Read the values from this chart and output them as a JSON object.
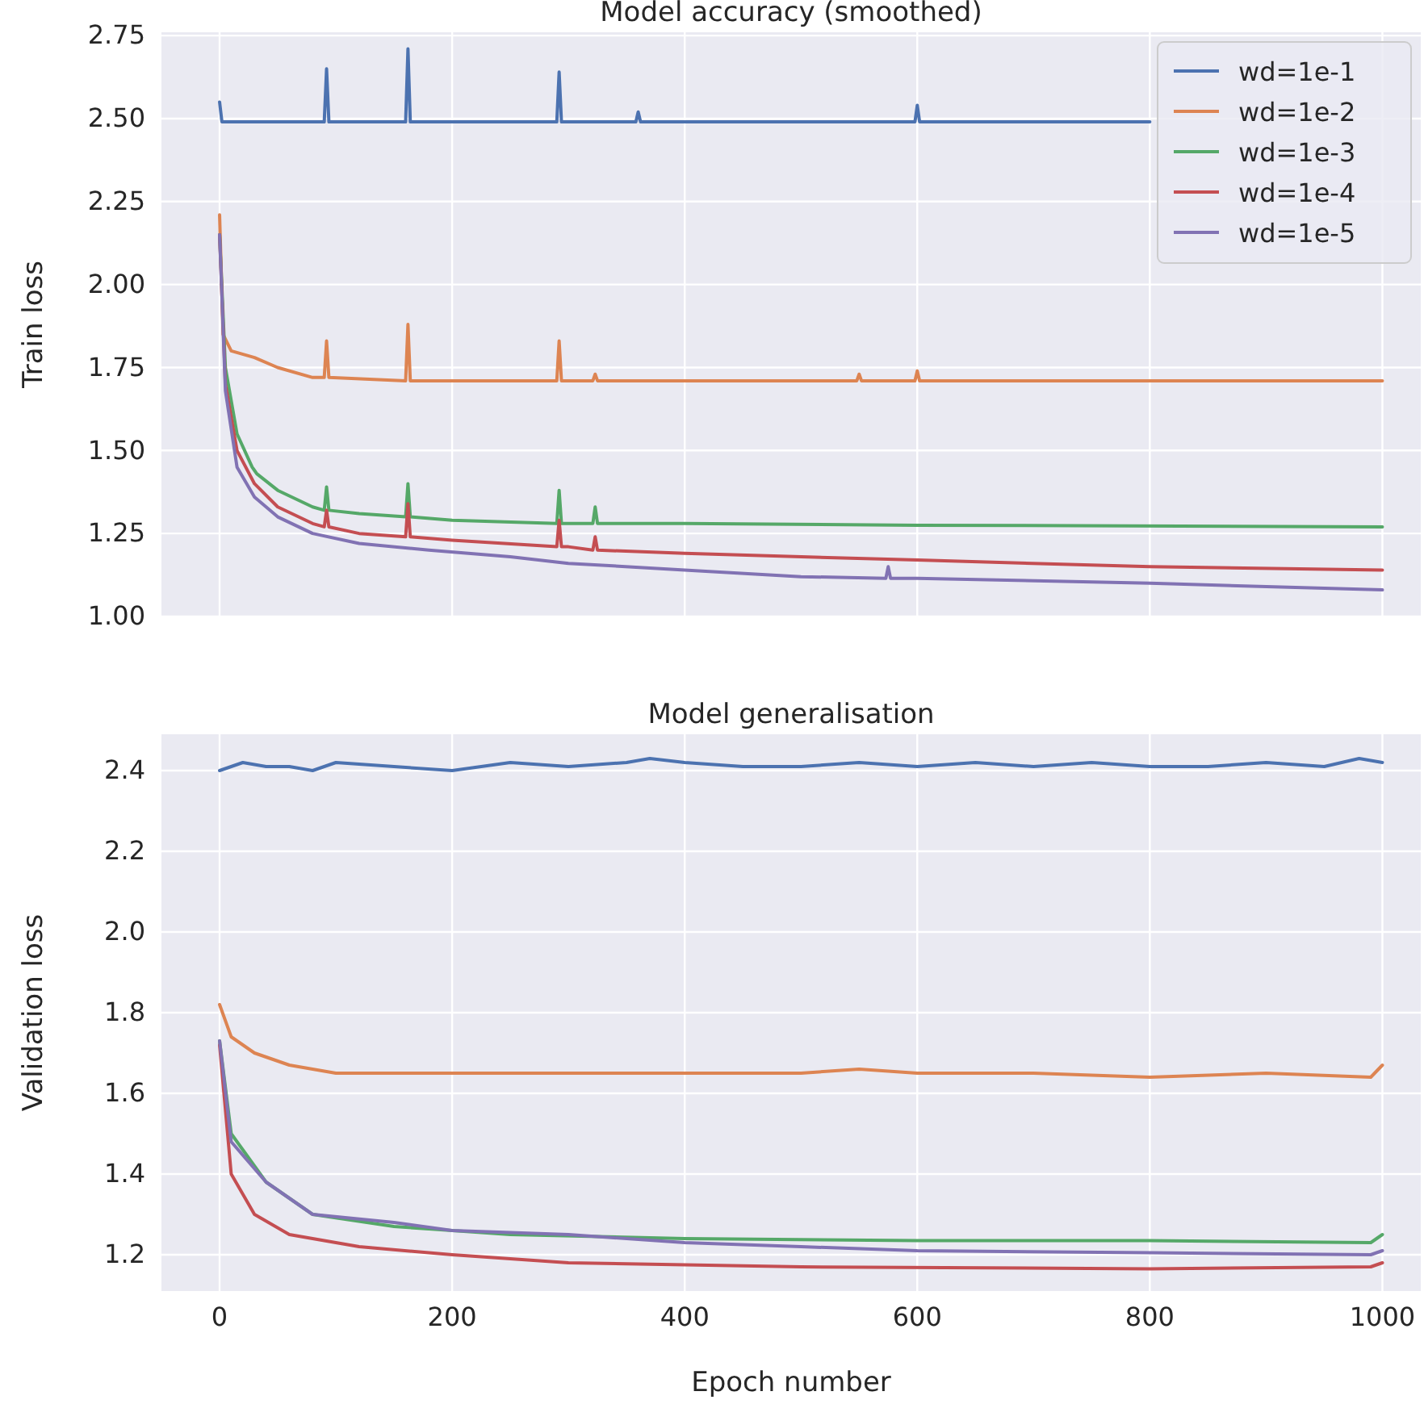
{
  "chart_data": [
    {
      "type": "line",
      "title": "Model accuracy (smoothed)",
      "ylabel": "Train loss",
      "xlim": [
        -50,
        1033
      ],
      "ylim": [
        1.0,
        2.76
      ],
      "xticks": [
        0,
        200,
        400,
        600,
        800,
        1000
      ],
      "yticks": [
        {
          "value": 1,
          "label": "1.00"
        },
        {
          "value": 1.25,
          "label": "1.25"
        },
        {
          "value": 1.5,
          "label": "1.50"
        },
        {
          "value": 1.75,
          "label": "1.75"
        },
        {
          "value": 2,
          "label": "2.00"
        },
        {
          "value": 2.25,
          "label": "2.25"
        },
        {
          "value": 2.5,
          "label": "2.50"
        },
        {
          "value": 2.75,
          "label": "2.75"
        }
      ],
      "tick_labels": "y",
      "grid": true,
      "legend": "top right",
      "line_style": "solid",
      "series": [
        {
          "name": "wd=1e-1",
          "color": "#4c72b0",
          "x": [
            0,
            2,
            4,
            90,
            92,
            94,
            160,
            162,
            164,
            290,
            292,
            294,
            358,
            360,
            362,
            598,
            600,
            602,
            800
          ],
          "values": [
            2.55,
            2.49,
            2.49,
            2.49,
            2.65,
            2.49,
            2.49,
            2.71,
            2.49,
            2.49,
            2.64,
            2.49,
            2.49,
            2.52,
            2.49,
            2.49,
            2.54,
            2.49,
            2.49
          ]
        },
        {
          "name": "wd=1e-2",
          "color": "#dd8452",
          "x": [
            0,
            3,
            10,
            30,
            50,
            80,
            90,
            92,
            94,
            160,
            162,
            164,
            290,
            292,
            294,
            321,
            323,
            325,
            548,
            550,
            552,
            598,
            600,
            602,
            800,
            1000
          ],
          "values": [
            2.21,
            1.85,
            1.8,
            1.78,
            1.75,
            1.72,
            1.72,
            1.83,
            1.72,
            1.71,
            1.88,
            1.71,
            1.71,
            1.83,
            1.71,
            1.71,
            1.73,
            1.71,
            1.71,
            1.73,
            1.71,
            1.71,
            1.74,
            1.71,
            1.71,
            1.71
          ]
        },
        {
          "name": "wd=1e-3",
          "color": "#55a868",
          "x": [
            0,
            5,
            15,
            28,
            30,
            32,
            50,
            80,
            90,
            92,
            94,
            120,
            160,
            162,
            164,
            200,
            290,
            292,
            294,
            321,
            323,
            325,
            400,
            600,
            1000
          ],
          "values": [
            2.15,
            1.75,
            1.55,
            1.45,
            1.44,
            1.43,
            1.38,
            1.33,
            1.32,
            1.39,
            1.32,
            1.31,
            1.3,
            1.4,
            1.3,
            1.29,
            1.28,
            1.38,
            1.28,
            1.28,
            1.33,
            1.28,
            1.28,
            1.275,
            1.27
          ]
        },
        {
          "name": "wd=1e-4",
          "color": "#c44e52",
          "x": [
            0,
            5,
            15,
            30,
            50,
            80,
            90,
            92,
            94,
            120,
            160,
            162,
            164,
            200,
            290,
            292,
            294,
            300,
            321,
            323,
            325,
            400,
            600,
            800,
            1000
          ],
          "values": [
            2.15,
            1.7,
            1.5,
            1.4,
            1.33,
            1.28,
            1.27,
            1.32,
            1.27,
            1.25,
            1.24,
            1.34,
            1.24,
            1.23,
            1.21,
            1.29,
            1.21,
            1.21,
            1.2,
            1.24,
            1.2,
            1.19,
            1.17,
            1.15,
            1.14
          ]
        },
        {
          "name": "wd=1e-5",
          "color": "#8172b3",
          "x": [
            0,
            5,
            15,
            30,
            50,
            80,
            120,
            180,
            250,
            300,
            400,
            500,
            573,
            575,
            577,
            600,
            800,
            1000
          ],
          "values": [
            2.15,
            1.68,
            1.45,
            1.36,
            1.3,
            1.25,
            1.22,
            1.2,
            1.18,
            1.16,
            1.14,
            1.12,
            1.115,
            1.15,
            1.115,
            1.115,
            1.1,
            1.08
          ]
        }
      ]
    },
    {
      "type": "line",
      "title": "Model generalisation",
      "xlabel": "Epoch number",
      "ylabel": "Validation loss",
      "xlim": [
        -50,
        1033
      ],
      "ylim": [
        1.11,
        2.49
      ],
      "xticks": [
        0,
        200,
        400,
        600,
        800,
        1000
      ],
      "yticks": [
        1.2,
        1.4,
        1.6,
        1.8,
        {
          "value": 2,
          "label": "2.0"
        },
        2.2,
        2.4
      ],
      "grid": true,
      "line_style": "solid",
      "series": [
        {
          "color": "#4c72b0",
          "x": [
            0,
            20,
            40,
            60,
            80,
            100,
            150,
            200,
            250,
            300,
            350,
            370,
            400,
            450,
            500,
            550,
            600,
            650,
            700,
            750,
            800,
            850,
            900,
            950,
            980,
            1000
          ],
          "values": [
            2.4,
            2.42,
            2.41,
            2.41,
            2.4,
            2.42,
            2.41,
            2.4,
            2.42,
            2.41,
            2.42,
            2.43,
            2.42,
            2.41,
            2.41,
            2.42,
            2.41,
            2.42,
            2.41,
            2.42,
            2.41,
            2.41,
            2.42,
            2.41,
            2.43,
            2.42
          ]
        },
        {
          "color": "#dd8452",
          "x": [
            0,
            10,
            30,
            60,
            100,
            200,
            300,
            400,
            500,
            550,
            600,
            700,
            800,
            900,
            990,
            1000
          ],
          "values": [
            1.82,
            1.74,
            1.7,
            1.67,
            1.65,
            1.65,
            1.65,
            1.65,
            1.65,
            1.66,
            1.65,
            1.65,
            1.64,
            1.65,
            1.64,
            1.67
          ]
        },
        {
          "color": "#55a868",
          "x": [
            0,
            10,
            40,
            80,
            150,
            250,
            400,
            600,
            800,
            990,
            1000
          ],
          "values": [
            1.73,
            1.5,
            1.38,
            1.3,
            1.27,
            1.25,
            1.24,
            1.235,
            1.235,
            1.23,
            1.25
          ]
        },
        {
          "color": "#c44e52",
          "x": [
            0,
            10,
            30,
            60,
            120,
            200,
            300,
            500,
            800,
            990,
            1000
          ],
          "values": [
            1.72,
            1.4,
            1.3,
            1.25,
            1.22,
            1.2,
            1.18,
            1.17,
            1.165,
            1.17,
            1.18
          ]
        },
        {
          "color": "#8172b3",
          "x": [
            0,
            10,
            40,
            80,
            150,
            200,
            300,
            400,
            500,
            600,
            800,
            990,
            1000
          ],
          "values": [
            1.73,
            1.48,
            1.38,
            1.3,
            1.28,
            1.26,
            1.25,
            1.23,
            1.22,
            1.21,
            1.205,
            1.2,
            1.21
          ]
        }
      ]
    }
  ]
}
